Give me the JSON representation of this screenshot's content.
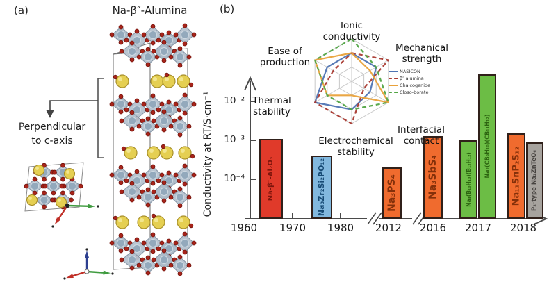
{
  "figure": {
    "background": "#ffffff",
    "panel_a": {
      "label": "(a)",
      "title": "Na-β″-Alumina",
      "annotation": {
        "line1": "Perpendicular",
        "line2": "to c-axis"
      },
      "atom_colors": {
        "sodium": "#e5cf52",
        "oxygen": "#a8241a",
        "polyhedra": "#b5c2cf"
      }
    },
    "panel_b": {
      "label": "(b)"
    }
  },
  "chart_data": [
    {
      "type": "bar",
      "title": "",
      "xlabel": "",
      "ylabel": "Conductivity at RT/S·cm⁻¹",
      "yscale": "log",
      "ylim": [
        1e-05,
        0.08
      ],
      "ytick_labels": [
        "10⁻²",
        "10⁻³",
        "10⁻⁴"
      ],
      "xtick_labels": [
        "1960",
        "1970",
        "1980",
        "2012",
        "2016",
        "2017",
        "2018"
      ],
      "axis_breaks_after": [
        "1980",
        "2012"
      ],
      "grid": false,
      "bars": [
        {
          "label": "Na-β″-Al₂O₃",
          "year": "1965",
          "value_S_per_cm": 0.0011,
          "color": "#e03a2a",
          "label_color": "#7e150c"
        },
        {
          "label": "Na₃Zr₂Si₂PO₁₂",
          "year": "1976",
          "value_S_per_cm": 0.0004,
          "color": "#82b8de",
          "label_color": "#174a74"
        },
        {
          "label": "Na₃PS₄",
          "year": "2012",
          "value_S_per_cm": 0.0002,
          "color": "#f06b2e",
          "label_color": "#84300a"
        },
        {
          "label": "Na₃SbS₄",
          "year": "2016",
          "value_S_per_cm": 0.0013,
          "color": "#f06b2e",
          "label_color": "#84300a"
        },
        {
          "label": "Na₄(B₁₀H₁₀)(B₁₂H₁₂)",
          "year": "2017",
          "value_S_per_cm": 0.001,
          "color": "#6cbd45",
          "label_color": "#2c6410"
        },
        {
          "label": "Na₂(CB₉H₁₀)(CB₁₁H₁₂)",
          "year": "2017",
          "value_S_per_cm": 0.05,
          "color": "#6cbd45",
          "label_color": "#2c6410"
        },
        {
          "label": "Na₁₁SnP₂S₁₂",
          "year": "2018",
          "value_S_per_cm": 0.0015,
          "color": "#f06b2e",
          "label_color": "#84300a"
        },
        {
          "label": "P₂-type Na₂ZnTeO₆",
          "year": "2018",
          "value_S_per_cm": 0.0009,
          "color": "#a7a39e",
          "label_color": "#474340"
        }
      ]
    },
    {
      "type": "radar",
      "title": "",
      "axes": [
        "Ionic conductivity",
        "Mechanical strength",
        "Interfacial contact",
        "Electrochemical stability",
        "Thermal stability",
        "Ease of production"
      ],
      "scale_max": 3,
      "rings": 3,
      "legend_position": "right",
      "series": [
        {
          "name": "NASICON",
          "color": "#4f74b3",
          "dash": false,
          "values": [
            2,
            2,
            1.5,
            2,
            3,
            2
          ]
        },
        {
          "name": "β″ alumina",
          "color": "#a93a32",
          "dash": true,
          "values": [
            2,
            3,
            1,
            3,
            3,
            1.5
          ]
        },
        {
          "name": "Chalcogenide",
          "color": "#e9a23b",
          "dash": false,
          "values": [
            2,
            1.5,
            3,
            1,
            2,
            3
          ]
        },
        {
          "name": "Closo-borate",
          "color": "#53a546",
          "dash": true,
          "values": [
            3,
            2,
            3,
            2,
            2,
            3
          ]
        }
      ]
    }
  ]
}
